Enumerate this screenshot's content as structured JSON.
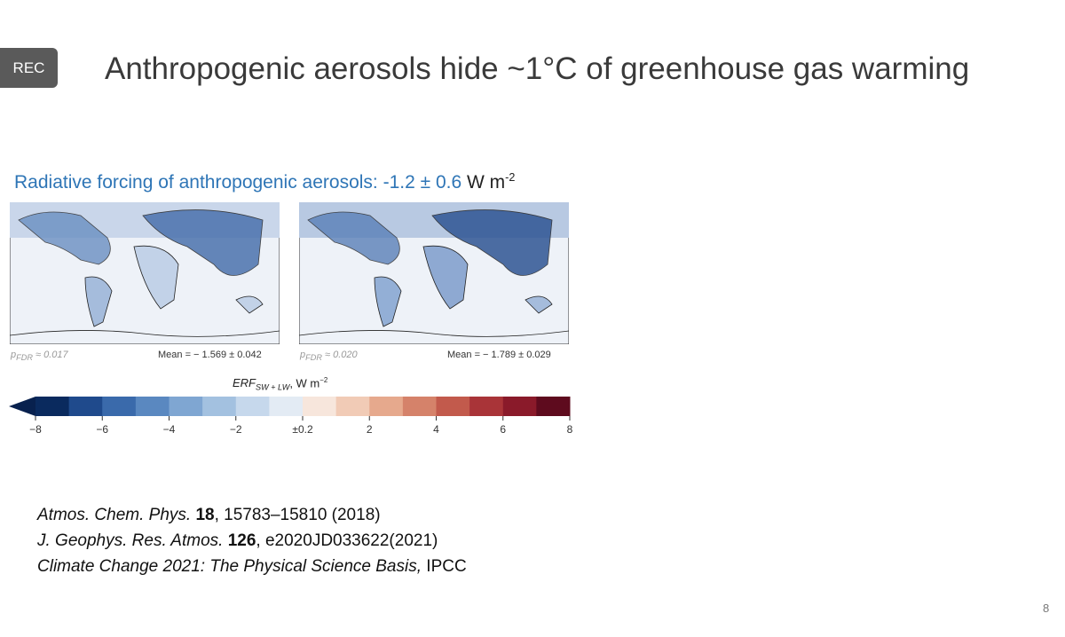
{
  "rec": "REC",
  "title": "Anthropogenic aerosols hide ~1°C of greenhouse gas warming",
  "subtitle": {
    "blue": "Radiative forcing of anthropogenic aerosols: -1.2 ± 0.6",
    "unit": "W m",
    "exponent": "-2"
  },
  "maps": [
    {
      "p_symbol": "p",
      "p_sub": "FDR",
      "p_value": "≈ 0.017",
      "mean": "Mean = − 1.569 ± 0.042"
    },
    {
      "p_symbol": "p",
      "p_sub": "FDR",
      "p_value": "≈ 0.020",
      "mean": "Mean = − 1.789 ± 0.029"
    }
  ],
  "colorbar": {
    "label": "ERF",
    "label_sub": "SW + LW",
    "unit": ", W m",
    "exponent": "−2",
    "ticks": [
      "−8",
      "−6",
      "−4",
      "−2",
      "±0.2",
      "2",
      "4",
      "6",
      "8"
    ]
  },
  "references": [
    {
      "journal": "Atmos. Chem. Phys.",
      "volume": "18",
      "rest": ", 15783–15810 (2018)"
    },
    {
      "journal": "J. Geophys. Res. Atmos.",
      "volume": "126",
      "rest": ", e2020JD033622(2021)"
    },
    {
      "journal": "Climate Change 2021: The Physical Science Basis,",
      "volume": "",
      "rest": " IPCC"
    }
  ],
  "page_number": "8"
}
